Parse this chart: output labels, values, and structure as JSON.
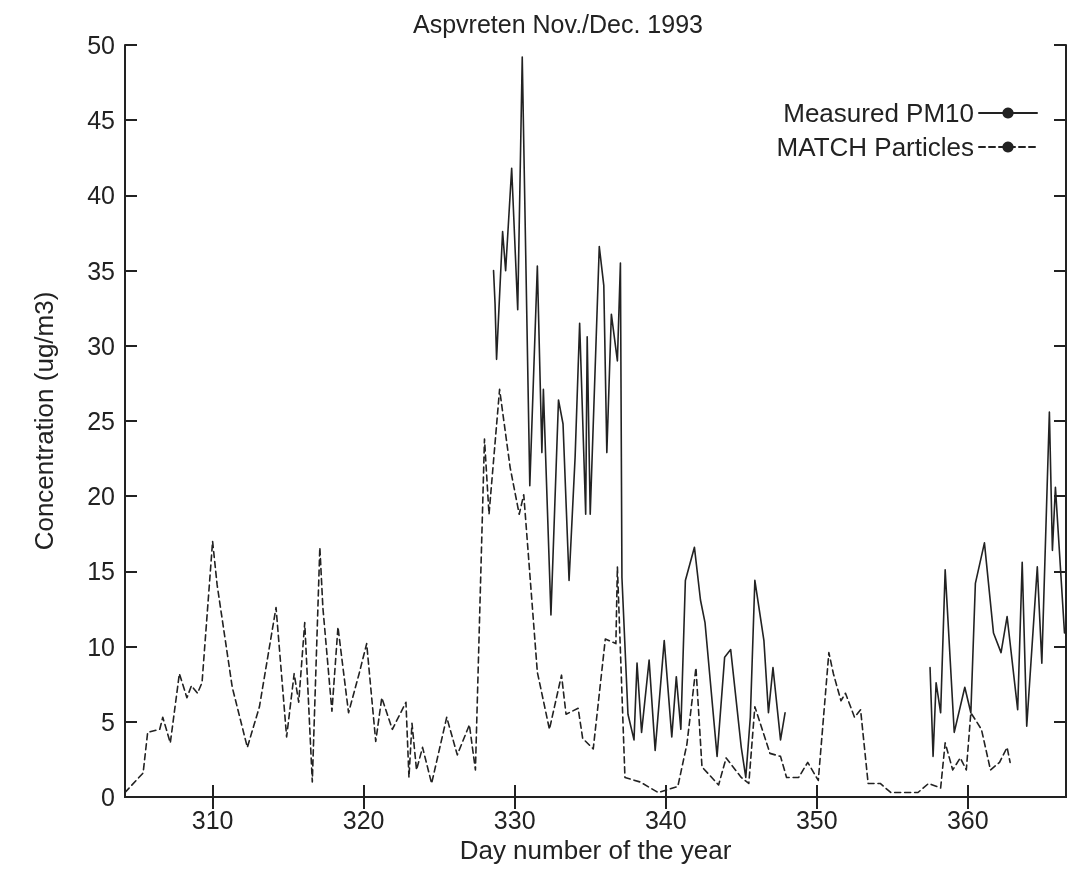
{
  "chart_data": {
    "type": "line",
    "title": "Aspvreten Nov./Dec. 1993",
    "xlabel": "Day number of the year",
    "ylabel": "Concentration (ug/m3)",
    "xlim": [
      304.2,
      366.5
    ],
    "xticks": [
      310,
      320,
      330,
      340,
      350,
      360
    ],
    "ylim": [
      0,
      50
    ],
    "yticks": [
      0,
      5,
      10,
      15,
      20,
      25,
      30,
      35,
      40,
      45,
      50
    ],
    "grid": false,
    "legend": "top right",
    "marker": "none",
    "series": [
      {
        "name": "Measured PM10",
        "color": "#222222",
        "line_style": "solid",
        "x": [
          328.6,
          328.7,
          328.8,
          329.2,
          329.4,
          329.8,
          330.2,
          330.5,
          331.0,
          331.5,
          331.8,
          331.9,
          332.4,
          332.9,
          333.2,
          333.6,
          334.0,
          334.3,
          334.7,
          334.8,
          335.0,
          335.6,
          335.9,
          336.1,
          336.4,
          336.8,
          337.0,
          337.1,
          337.5,
          337.9,
          338.1,
          338.4,
          338.9,
          339.3,
          339.9,
          340.4,
          340.7,
          341.0,
          341.3,
          341.9,
          342.3,
          342.6,
          343.4,
          343.9,
          344.3,
          345.0,
          345.3,
          345.6,
          345.9,
          346.5,
          346.8,
          347.1,
          347.6,
          347.9,
          348.0,
          357.5,
          357.7,
          357.9,
          358.2,
          358.5,
          359.1,
          359.8,
          360.2,
          360.5,
          361.1,
          361.7,
          362.2,
          362.6,
          363.3,
          363.6,
          363.9,
          364.6,
          364.9,
          365.4,
          365.6,
          365.8,
          366.4
        ],
        "values": [
          35.0,
          32.8,
          29.1,
          37.6,
          35.0,
          41.8,
          32.4,
          49.2,
          20.7,
          35.3,
          22.9,
          27.1,
          12.1,
          26.4,
          24.8,
          14.4,
          22.6,
          31.5,
          18.8,
          30.6,
          18.8,
          36.6,
          34.0,
          22.9,
          32.1,
          29.0,
          35.5,
          14.6,
          5.5,
          3.8,
          8.9,
          4.3,
          9.1,
          3.1,
          10.4,
          4.0,
          8.0,
          4.5,
          14.4,
          16.6,
          13.1,
          11.6,
          2.7,
          9.3,
          9.8,
          3.3,
          1.3,
          5.3,
          14.4,
          10.4,
          5.6,
          8.6,
          3.8,
          5.6,
          null,
          8.6,
          2.7,
          7.6,
          5.6,
          15.1,
          4.3,
          7.3,
          5.6,
          14.2,
          16.9,
          10.9,
          9.6,
          12.0,
          5.8,
          15.6,
          4.7,
          15.3,
          8.9,
          25.6,
          16.4,
          20.6,
          10.9
        ]
      },
      {
        "name": "MATCH Particles",
        "color": "#222222",
        "line_style": "dashed",
        "x": [
          304.2,
          305.4,
          305.7,
          306.5,
          306.7,
          307.2,
          307.8,
          308.3,
          308.6,
          309.0,
          309.3,
          310.0,
          310.3,
          311.3,
          312.3,
          313.1,
          314.2,
          314.9,
          315.4,
          315.7,
          316.1,
          316.6,
          317.1,
          317.3,
          317.9,
          318.3,
          319.0,
          319.7,
          320.2,
          320.8,
          321.2,
          321.9,
          322.8,
          323.0,
          323.2,
          323.5,
          323.9,
          324.5,
          325.5,
          326.2,
          327.0,
          327.4,
          328.0,
          328.3,
          329.0,
          329.7,
          330.3,
          330.6,
          331.5,
          332.3,
          333.1,
          333.4,
          334.2,
          334.5,
          335.2,
          336.0,
          336.7,
          336.8,
          337.3,
          338.3,
          339.5,
          340.8,
          341.4,
          342.0,
          342.4,
          343.5,
          344.0,
          345.0,
          345.5,
          345.9,
          346.9,
          347.6,
          348.0,
          348.8,
          349.4,
          350.1,
          350.8,
          351.1,
          351.6,
          351.9,
          352.5,
          352.9,
          353.4,
          354.2,
          354.9,
          356.7,
          357.4,
          358.2,
          358.5,
          359.0,
          359.5,
          359.9,
          360.2,
          360.9,
          361.5,
          362.1,
          362.6,
          362.8
        ],
        "values": [
          0.3,
          1.6,
          4.3,
          4.5,
          5.3,
          3.6,
          8.2,
          6.6,
          7.4,
          6.9,
          7.6,
          17.0,
          14.1,
          7.3,
          3.3,
          6.0,
          12.6,
          4.0,
          8.2,
          6.3,
          11.6,
          1.0,
          16.6,
          12.6,
          5.7,
          11.3,
          5.6,
          8.2,
          10.2,
          3.7,
          6.6,
          4.5,
          6.3,
          1.3,
          4.9,
          1.8,
          3.3,
          0.9,
          5.3,
          2.8,
          4.8,
          1.8,
          23.8,
          18.8,
          27.1,
          21.9,
          18.8,
          20.1,
          8.3,
          4.5,
          8.1,
          5.5,
          5.9,
          3.9,
          3.2,
          10.5,
          10.2,
          15.3,
          1.3,
          1.0,
          0.3,
          0.7,
          3.5,
          8.6,
          2.0,
          0.8,
          2.6,
          1.3,
          0.9,
          6.0,
          2.9,
          2.7,
          1.3,
          1.3,
          2.3,
          1.1,
          9.6,
          8.2,
          6.4,
          6.9,
          5.3,
          5.8,
          0.9,
          0.9,
          0.3,
          0.3,
          0.9,
          0.6,
          3.6,
          1.8,
          2.6,
          1.8,
          5.6,
          4.5,
          1.8,
          2.3,
          3.3,
          2.3
        ]
      }
    ]
  }
}
